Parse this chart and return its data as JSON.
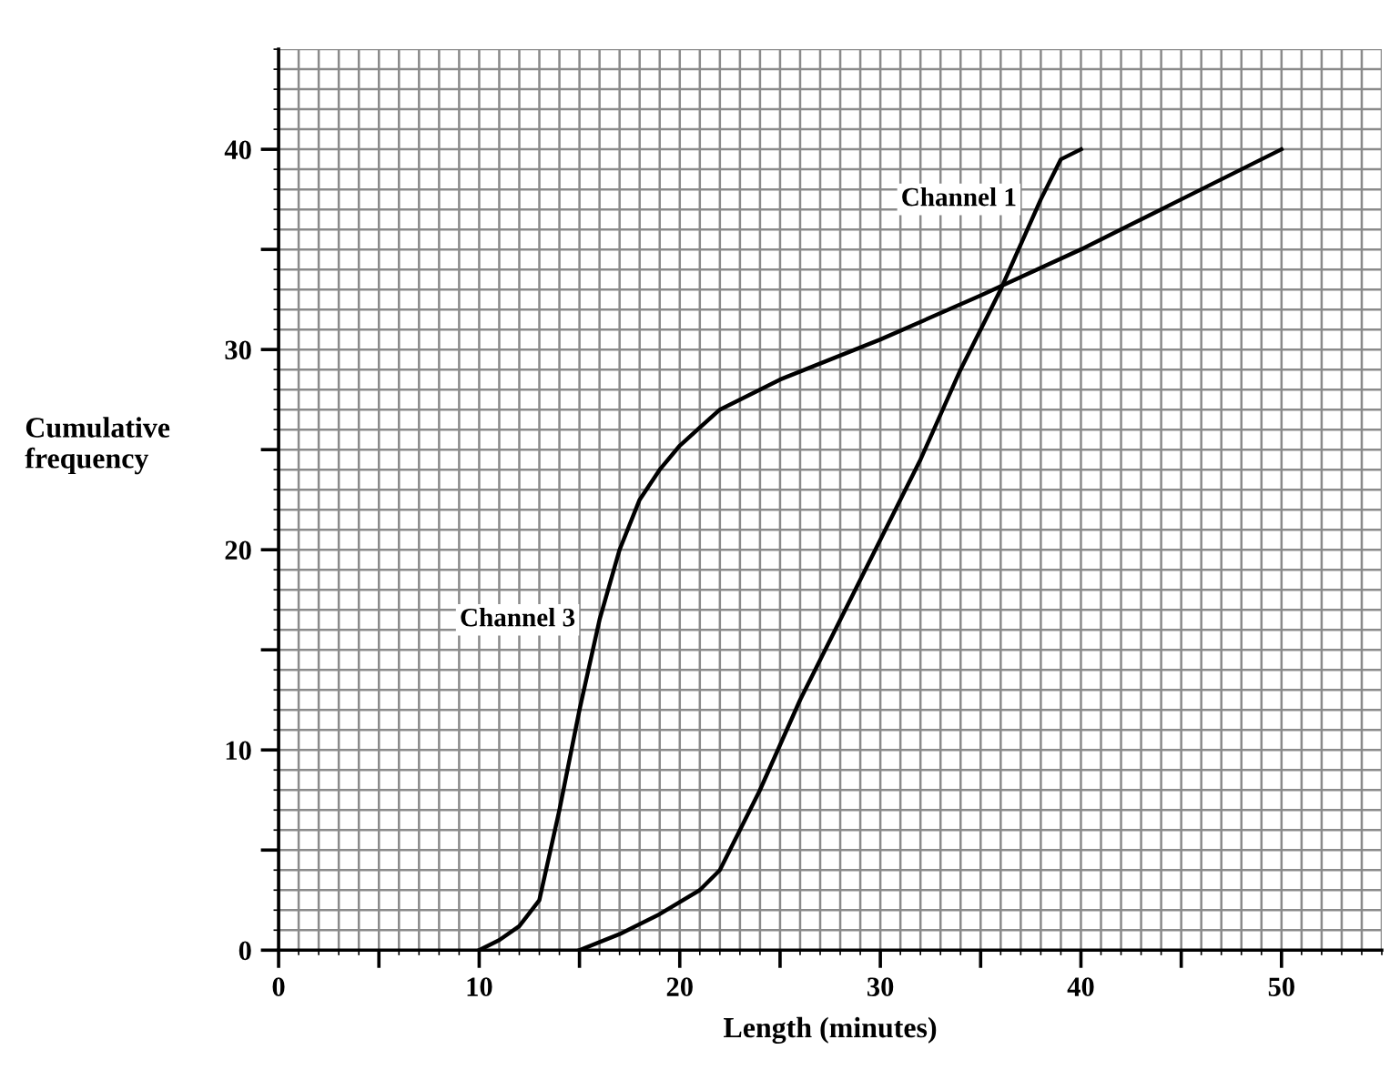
{
  "chart_data": {
    "type": "line",
    "xlabel": "Length (minutes)",
    "ylabel": "Cumulative\nfrequency",
    "xlim": [
      0,
      55
    ],
    "ylim": [
      0,
      45
    ],
    "xticks": [
      0,
      {
        "value": 5,
        "label": null
      },
      10,
      {
        "value": 15,
        "label": null
      },
      20,
      {
        "value": 25,
        "label": null
      },
      30,
      {
        "value": 35,
        "label": null
      },
      40,
      {
        "value": 45,
        "label": null
      },
      50
    ],
    "yticks": [
      0,
      {
        "value": 5,
        "label": null
      },
      10,
      {
        "value": 15,
        "label": null
      },
      20,
      {
        "value": 25,
        "label": null
      },
      30,
      {
        "value": 35,
        "label": null
      },
      40
    ],
    "grid": true,
    "legend": false,
    "marker": "none",
    "line_style": "solid",
    "series": [
      {
        "name": "Channel 1",
        "color": "#000000",
        "x": [
          15,
          17,
          19,
          21,
          22,
          24,
          26,
          28,
          30,
          32,
          34,
          36,
          38,
          39,
          40
        ],
        "values": [
          0,
          0.8,
          1.8,
          3,
          4,
          8,
          12.5,
          16.5,
          20.5,
          24.5,
          29,
          33,
          37.5,
          39.5,
          40
        ]
      },
      {
        "name": "Channel 3",
        "color": "#000000",
        "x": [
          10,
          11,
          12,
          13,
          14,
          15,
          16,
          17,
          18,
          19,
          20,
          22,
          25,
          30,
          35,
          40,
          45,
          50
        ],
        "values": [
          0,
          0.5,
          1.2,
          2.5,
          7,
          12,
          16.5,
          20,
          22.5,
          24,
          25.2,
          27,
          28.5,
          30.5,
          32.7,
          35,
          37.5,
          40
        ]
      }
    ]
  }
}
